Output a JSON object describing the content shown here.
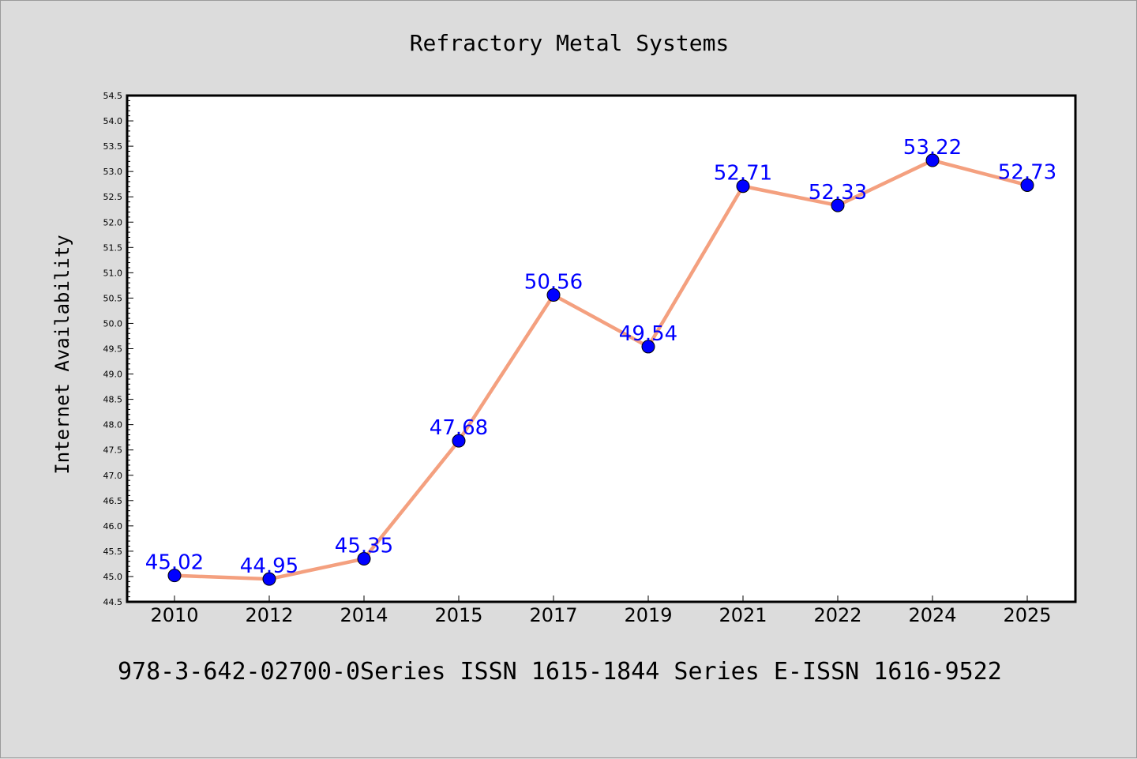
{
  "chart_data": {
    "type": "line",
    "title": "Refractory Metal Systems",
    "xlabel": "",
    "ylabel": "Internet Availability",
    "categories": [
      "2010",
      "2012",
      "2014",
      "2015",
      "2017",
      "2019",
      "2021",
      "2022",
      "2024",
      "2025"
    ],
    "series": [
      {
        "values": [
          45.02,
          44.95,
          45.35,
          47.68,
          50.56,
          49.54,
          52.71,
          52.33,
          53.22,
          52.73
        ]
      }
    ],
    "data_labels": [
      "45.02",
      "44.95",
      "45.35",
      "47.68",
      "50.56",
      "49.54",
      "52.71",
      "52.33",
      "53.22",
      "52.73"
    ],
    "ylim": [
      44.5,
      54.5
    ],
    "yticks": [
      "44.5",
      "45.0",
      "45.5",
      "46.0",
      "46.5",
      "47.0",
      "47.5",
      "48.0",
      "48.5",
      "49.0",
      "49.5",
      "50.0",
      "50.5",
      "51.0",
      "51.5",
      "52.0",
      "52.5",
      "53.0",
      "53.5",
      "54.0",
      "54.5"
    ],
    "grid": false,
    "line_color": "#f4a07f",
    "marker_color": "#0000ff"
  },
  "footer": {
    "text": "978-3-642-02700-0Series ISSN 1615-1844 Series E-ISSN 1616-9522"
  }
}
